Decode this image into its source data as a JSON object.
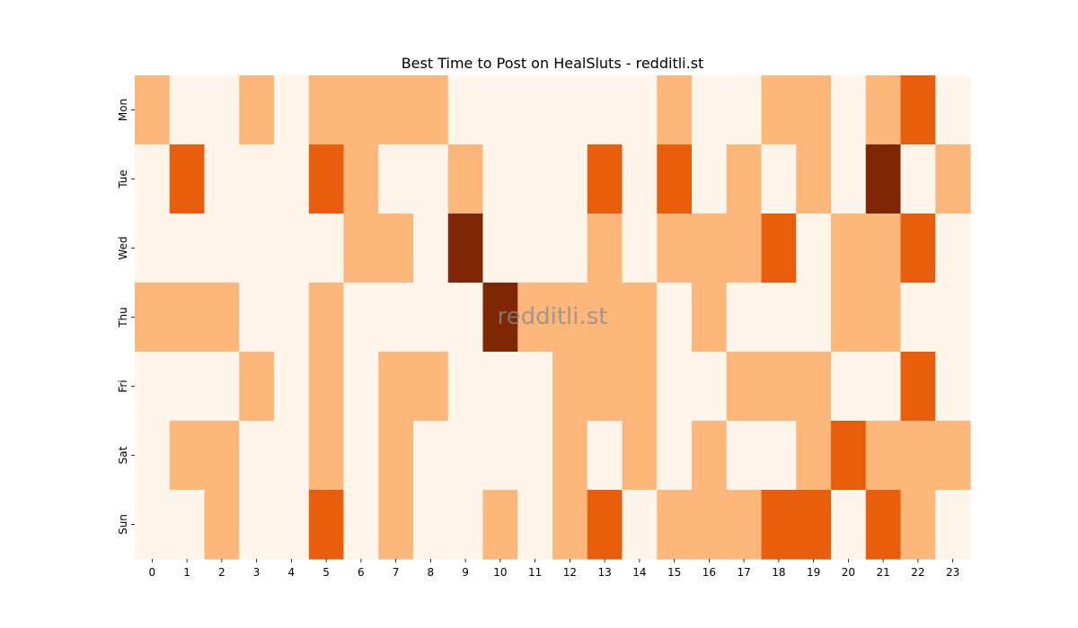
{
  "chart_data": {
    "type": "heatmap",
    "title": "Best Time to Post on HealSluts - redditli.st",
    "xlabel": "",
    "ylabel": "",
    "x_categories": [
      "0",
      "1",
      "2",
      "3",
      "4",
      "5",
      "6",
      "7",
      "8",
      "9",
      "10",
      "11",
      "12",
      "13",
      "14",
      "15",
      "16",
      "17",
      "18",
      "19",
      "20",
      "21",
      "22",
      "23"
    ],
    "y_categories": [
      "Mon",
      "Tue",
      "Wed",
      "Thu",
      "Fri",
      "Sat",
      "Sun"
    ],
    "values": [
      [
        1,
        0,
        0,
        1,
        0,
        1,
        1,
        1,
        1,
        0,
        0,
        0,
        0,
        0,
        0,
        1,
        0,
        0,
        1,
        1,
        0,
        1,
        2,
        0
      ],
      [
        0,
        2,
        0,
        0,
        0,
        2,
        1,
        0,
        0,
        1,
        0,
        0,
        0,
        2,
        0,
        2,
        0,
        1,
        0,
        1,
        0,
        3,
        0,
        1
      ],
      [
        0,
        0,
        0,
        0,
        0,
        0,
        1,
        1,
        0,
        3,
        0,
        0,
        0,
        1,
        0,
        1,
        1,
        1,
        2,
        0,
        1,
        1,
        2,
        0
      ],
      [
        1,
        1,
        1,
        0,
        0,
        1,
        0,
        0,
        0,
        0,
        3,
        1,
        1,
        1,
        1,
        0,
        1,
        0,
        0,
        0,
        1,
        1,
        0,
        0
      ],
      [
        0,
        0,
        0,
        1,
        0,
        1,
        0,
        1,
        1,
        0,
        0,
        0,
        1,
        1,
        1,
        0,
        0,
        1,
        1,
        1,
        0,
        0,
        2,
        0
      ],
      [
        0,
        1,
        1,
        0,
        0,
        1,
        0,
        1,
        0,
        0,
        0,
        0,
        1,
        0,
        1,
        0,
        1,
        0,
        0,
        1,
        2,
        1,
        1,
        1
      ],
      [
        0,
        0,
        1,
        0,
        0,
        2,
        0,
        1,
        0,
        0,
        1,
        0,
        1,
        2,
        0,
        1,
        1,
        1,
        2,
        2,
        0,
        2,
        1,
        0
      ]
    ],
    "colormap": "Oranges",
    "colors": [
      "#fff5eb",
      "#fdb77a",
      "#e95e0d",
      "#7f2704"
    ],
    "watermark": "redditli.st",
    "grid": false,
    "legend": "none"
  }
}
